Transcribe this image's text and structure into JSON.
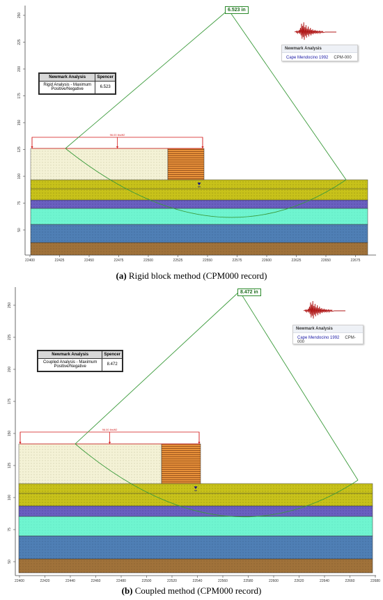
{
  "panels": [
    {
      "id": "a",
      "caption_label": "(a)",
      "caption_text": " Rigid block method (CPM000 record)",
      "displacement_label": "6.523 in",
      "table_header_col1": "Newmark Analysis",
      "table_header_col2": "Spencer",
      "table_row_label": "Rigid Analysis - Maximum Positive/Negative",
      "table_row_value": "6.523",
      "legend_title": "Newmark Analysis",
      "legend_record": "Cape Mendocino 1992",
      "legend_component": "CPM-000",
      "load_label": "96.00 lbs/ft2",
      "y_ticks": [
        "250",
        "225",
        "200",
        "175",
        "150",
        "125",
        "100",
        "75",
        "50"
      ],
      "x_ticks": [
        "22400",
        "22425",
        "22450",
        "22475",
        "22500",
        "22525",
        "22550",
        "22575",
        "22600",
        "22625",
        "22650",
        "22675"
      ]
    },
    {
      "id": "b",
      "caption_label": "(b)",
      "caption_text": " Coupled method (CPM000 record)",
      "displacement_label": "8.472 in",
      "table_header_col1": "Newmark Analysis",
      "table_header_col2": "Spencer",
      "table_row_label": "Coupled Analysis - Maximum Positive/Negative",
      "table_row_value": "8.472",
      "legend_title": "Newmark Analysis",
      "legend_record": "Cape Mendocino 1992",
      "legend_component": "CPM-000",
      "load_label": "96.00 lbs/ft2",
      "y_ticks": [
        "250",
        "225",
        "200",
        "175",
        "150",
        "125",
        "100",
        "75",
        "50"
      ],
      "x_ticks": [
        "22400",
        "22420",
        "22440",
        "22460",
        "22480",
        "22500",
        "22520",
        "22540",
        "22560",
        "22580",
        "22600",
        "22620",
        "22640",
        "22660",
        "22680"
      ]
    }
  ],
  "colors": {
    "fill_soil": "#f4f2d6",
    "counterweight": "#e8913a",
    "olive_layer": "#c8c21a",
    "purple_layer": "#6a5fc0",
    "aqua_layer": "#6ff5d0",
    "blue_layer": "#4f7fb5",
    "brown_layer": "#a0723a",
    "slip_surface": "#3a9a3a",
    "load": "#d42020"
  },
  "icons": [
    "seismic-record-icon",
    "water-table-icon"
  ]
}
